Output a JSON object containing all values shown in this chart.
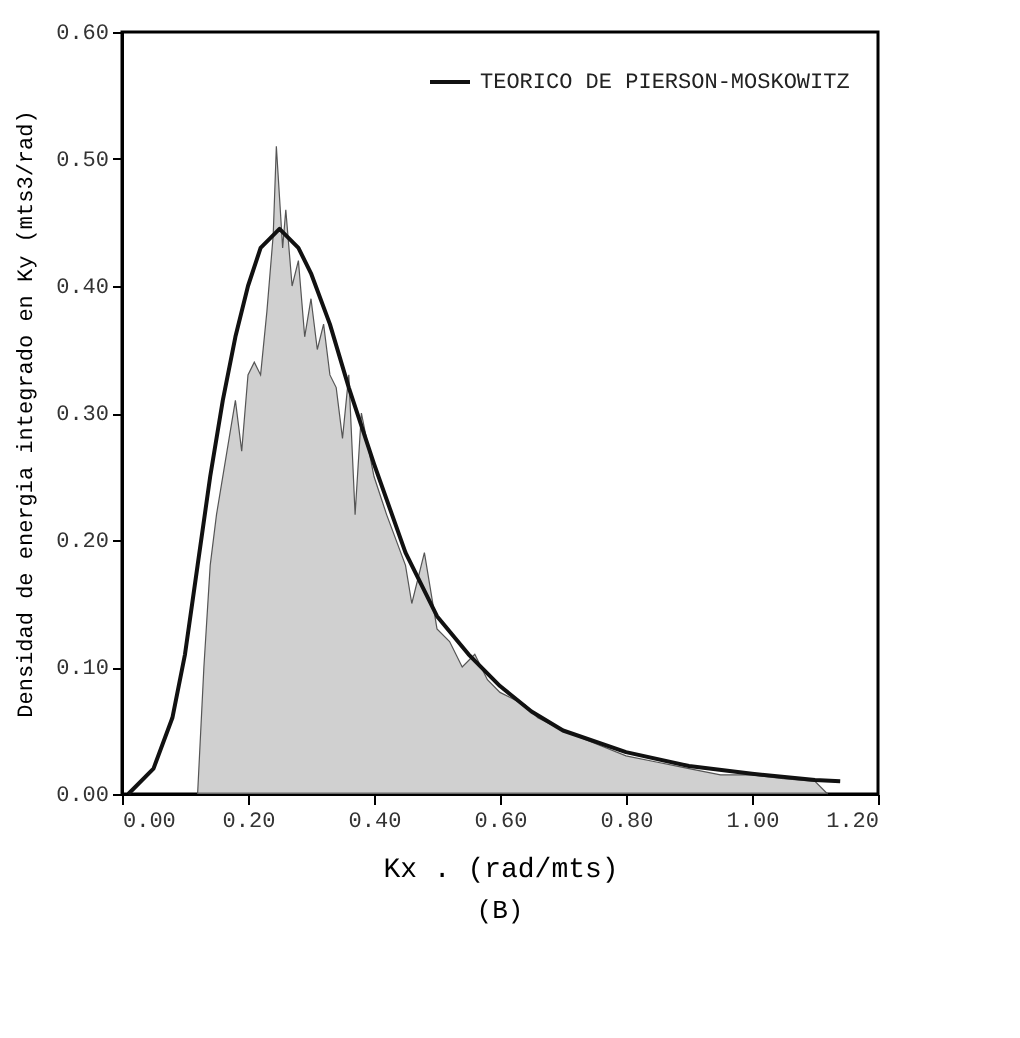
{
  "chart_data": {
    "type": "line",
    "xlabel": "Kx . (rad/mts)",
    "ylabel": "Densidad de energia integrado en Ky (mts3/rad)",
    "annotations": [
      "(B)"
    ],
    "xlim": [
      0,
      1.2
    ],
    "ylim": [
      0,
      0.6
    ],
    "xticks": [
      {
        "value": 0,
        "label": "0.00"
      },
      {
        "value": 0.2,
        "label": "0.20"
      },
      {
        "value": 0.4,
        "label": "0.40"
      },
      {
        "value": 0.6,
        "label": "0.60"
      },
      {
        "value": 0.8,
        "label": "0.80"
      },
      {
        "value": 1,
        "label": "1.00"
      },
      {
        "value": 1.2,
        "label": "1.20"
      }
    ],
    "yticks": [
      {
        "value": 0,
        "label": "0.00"
      },
      {
        "value": 0.1,
        "label": "0.10"
      },
      {
        "value": 0.2,
        "label": "0.20"
      },
      {
        "value": 0.3,
        "label": "0.30"
      },
      {
        "value": 0.4,
        "label": "0.40"
      },
      {
        "value": 0.5,
        "label": "0.50"
      },
      {
        "value": 0.6,
        "label": "0.60"
      }
    ],
    "grid": false,
    "legend": "top right",
    "series": [
      {
        "type": "area",
        "color": "#b0b0b0",
        "x": [
          0.12,
          0.13,
          0.14,
          0.15,
          0.17,
          0.18,
          0.19,
          0.2,
          0.21,
          0.22,
          0.23,
          0.24,
          0.245,
          0.25,
          0.255,
          0.26,
          0.27,
          0.28,
          0.29,
          0.3,
          0.31,
          0.32,
          0.33,
          0.34,
          0.35,
          0.36,
          0.37,
          0.38,
          0.4,
          0.42,
          0.45,
          0.46,
          0.48,
          0.5,
          0.52,
          0.54,
          0.56,
          0.58,
          0.6,
          0.64,
          0.66,
          0.7,
          0.75,
          0.8,
          0.85,
          0.9,
          0.95,
          1.0,
          1.05,
          1.1,
          1.12
        ],
        "values": [
          0,
          0.1,
          0.18,
          0.22,
          0.28,
          0.31,
          0.27,
          0.33,
          0.34,
          0.33,
          0.38,
          0.44,
          0.51,
          0.47,
          0.43,
          0.46,
          0.4,
          0.42,
          0.36,
          0.39,
          0.35,
          0.37,
          0.33,
          0.32,
          0.28,
          0.33,
          0.22,
          0.3,
          0.25,
          0.22,
          0.18,
          0.15,
          0.19,
          0.13,
          0.12,
          0.1,
          0.11,
          0.09,
          0.08,
          0.07,
          0.06,
          0.05,
          0.04,
          0.03,
          0.025,
          0.02,
          0.015,
          0.015,
          0.012,
          0.01,
          0
        ]
      },
      {
        "type": "line",
        "name": "TEORICO DE PIERSON-MOSKOWITZ",
        "color": "#111111",
        "x": [
          0.01,
          0.05,
          0.08,
          0.1,
          0.12,
          0.14,
          0.16,
          0.18,
          0.2,
          0.22,
          0.25,
          0.28,
          0.3,
          0.33,
          0.36,
          0.4,
          0.45,
          0.5,
          0.55,
          0.6,
          0.65,
          0.7,
          0.8,
          0.9,
          1.0,
          1.1,
          1.14
        ],
        "values": [
          0,
          0.02,
          0.06,
          0.11,
          0.18,
          0.25,
          0.31,
          0.36,
          0.4,
          0.43,
          0.445,
          0.43,
          0.41,
          0.37,
          0.32,
          0.26,
          0.19,
          0.14,
          0.11,
          0.085,
          0.065,
          0.05,
          0.033,
          0.022,
          0.016,
          0.011,
          0.01
        ]
      }
    ]
  }
}
